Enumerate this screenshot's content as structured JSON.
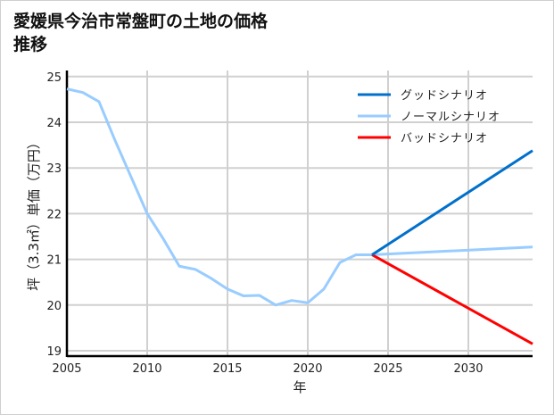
{
  "chart_data": {
    "type": "line",
    "title": "愛媛県今治市常盤町の土地の価格推移",
    "xlabel": "年",
    "ylabel": "坪（3.3㎡）単価（万円）",
    "xlim": [
      2005,
      2034
    ],
    "ylim": [
      18.9,
      25.1
    ],
    "xticks": [
      2005,
      2010,
      2015,
      2020,
      2025,
      2030
    ],
    "yticks": [
      19,
      20,
      21,
      22,
      23,
      24,
      25
    ],
    "grid": true,
    "legend_position": "top-right",
    "series": [
      {
        "name": "グッドシナリオ",
        "color": "#0070cc",
        "x": [
          2024,
          2034
        ],
        "y": [
          21.1,
          23.38
        ]
      },
      {
        "name": "ノーマルシナリオ",
        "color": "#99ccff",
        "x": [
          2005,
          2006,
          2007,
          2008,
          2009,
          2010,
          2011,
          2012,
          2013,
          2014,
          2015,
          2016,
          2017,
          2018,
          2019,
          2020,
          2021,
          2022,
          2023,
          2024,
          2034
        ],
        "y": [
          24.73,
          24.65,
          24.45,
          23.6,
          22.8,
          22.0,
          21.45,
          20.85,
          20.78,
          20.58,
          20.35,
          20.2,
          20.21,
          20.0,
          20.1,
          20.05,
          20.35,
          20.93,
          21.1,
          21.1,
          21.27
        ]
      },
      {
        "name": "バッドシナリオ",
        "color": "#ff0000",
        "x": [
          2024,
          2034
        ],
        "y": [
          21.1,
          19.15
        ]
      }
    ]
  }
}
